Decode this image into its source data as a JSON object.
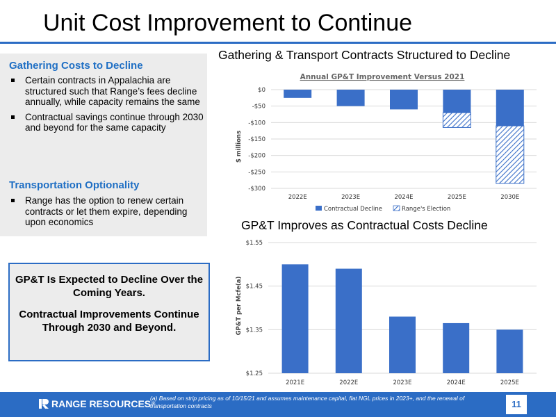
{
  "slide": {
    "title": "Unit Cost Improvement to Continue",
    "page_number": "11"
  },
  "left_panel": {
    "section1": {
      "heading": "Gathering Costs to Decline",
      "bullets": [
        "Certain contracts in Appalachia are structured such that Range’s fees decline annually, while capacity remains the same",
        "Contractual savings continue through 2030 and beyond for the same capacity"
      ]
    },
    "section2": {
      "heading": "Transportation Optionality",
      "bullets": [
        "Range has the option to renew certain contracts or let them expire, depending upon economics"
      ]
    }
  },
  "callout": {
    "line1": "GP&T Is Expected to Decline Over the Coming Years.",
    "line2": "Contractual Improvements Continue Through 2030 and Beyond."
  },
  "chart_data": [
    {
      "type": "bar",
      "heading": "Gathering & Transport Contracts Structured to Decline",
      "title": "Annual GP&T Improvement Versus 2021",
      "ylabel": "$ millions",
      "categories": [
        "2022E",
        "2023E",
        "2024E",
        "2025E",
        "2030E"
      ],
      "series": [
        {
          "name": "Contractual Decline",
          "values": [
            -25,
            -50,
            -60,
            -70,
            -110
          ]
        },
        {
          "name": "Range's Election",
          "values": [
            0,
            0,
            0,
            -45,
            -175
          ]
        }
      ],
      "stacked": true,
      "ylim": [
        -300,
        0
      ],
      "yticks": [
        "$0",
        "-$50",
        "-$100",
        "-$150",
        "-$200",
        "-$250",
        "-$300"
      ],
      "legend": "bottom",
      "colors": {
        "Contractual Decline": "#3a6fc8",
        "Range's Election": "#3a6fc8"
      }
    },
    {
      "type": "bar",
      "heading": "GP&T Improves as Contractual Costs Decline",
      "ylabel": "GP&T per Mcfe(a)",
      "categories": [
        "2021E",
        "2022E",
        "2023E",
        "2024E",
        "2025E"
      ],
      "values": [
        1.5,
        1.49,
        1.38,
        1.365,
        1.35
      ],
      "ylim": [
        1.25,
        1.55
      ],
      "yticks": [
        "$1.55",
        "$1.45",
        "$1.35",
        "$1.25"
      ],
      "color": "#3a6fc8"
    }
  ],
  "footer": {
    "logo_text": "RANGE RESOURCES",
    "footnote": "(a) Based on strip pricing as of 10/15/21 and assumes maintenance capital, flat NGL prices in 2023+, and the renewal of transportation contracts"
  }
}
